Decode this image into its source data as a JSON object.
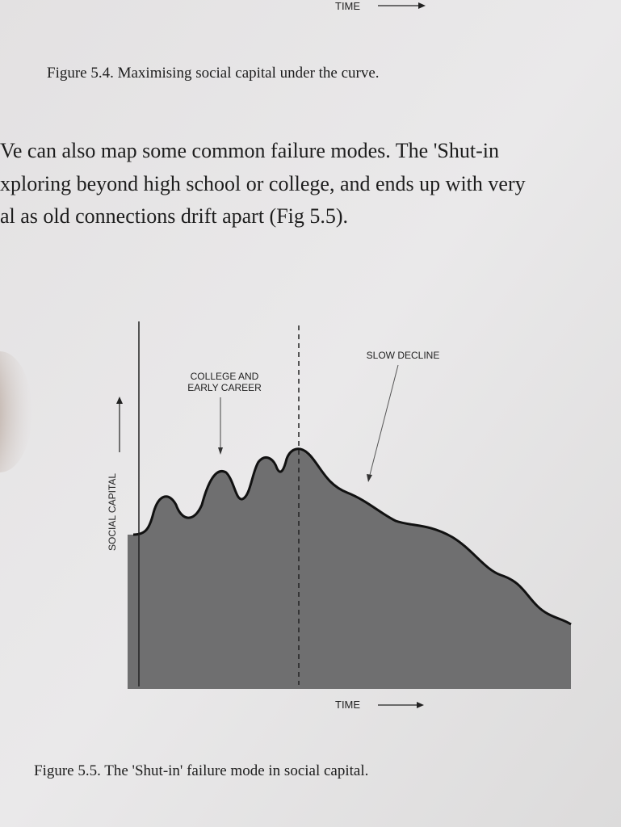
{
  "header": {
    "axis_label": "TIME"
  },
  "figure_1": {
    "caption": "Figure 5.4. Maximising social capital under the curve."
  },
  "paragraph": {
    "lines": [
      "Ve can also map some common failure modes. The 'Shut-in",
      "xploring beyond high school or college, and ends up with very",
      "al as old connections drift apart (Fig 5.5)."
    ]
  },
  "figure_2": {
    "y_axis_label": "SOCIAL CAPITAL",
    "x_axis_label": "TIME",
    "annotations": [
      {
        "lines": [
          "COLLEGE AND",
          "EARLY CAREER"
        ]
      },
      {
        "lines": [
          "SLOW DECLINE"
        ]
      }
    ],
    "caption": "Figure 5.5. The 'Shut-in' failure mode in social capital."
  }
}
